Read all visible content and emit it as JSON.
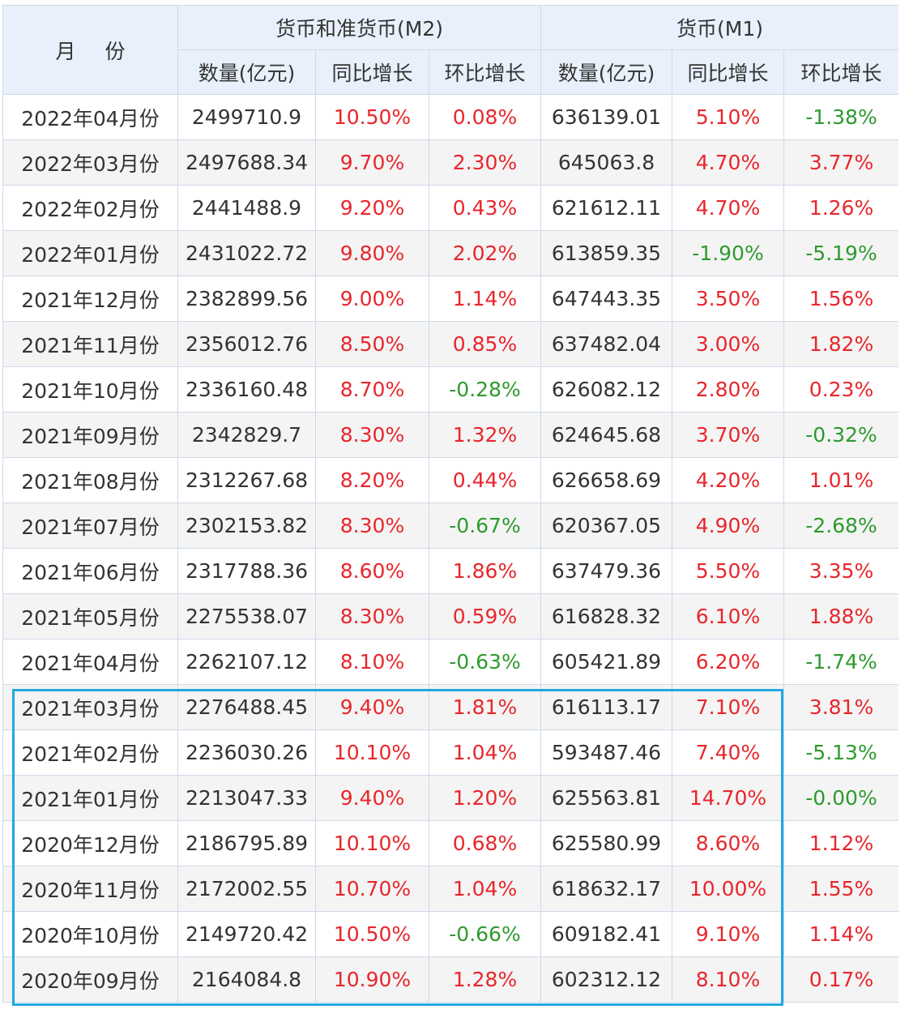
{
  "header": {
    "month_label": "月 份",
    "m2_group": "货币和准货币(M2)",
    "m1_group": "货币(M1)",
    "sub": [
      "数量(亿元)",
      "同比增长",
      "环比增长",
      "数量(亿元)",
      "同比增长",
      "环比增长"
    ]
  },
  "colors": {
    "positive": "#e8262c",
    "negative": "#2e9a2e",
    "header_bg": "#e8f1fb",
    "highlight_border": "#22a8e0"
  },
  "rows": [
    {
      "month": "2022年04月份",
      "m2_amount": "2499710.9",
      "m2_yoy": "10.50%",
      "m2_mom": "0.08%",
      "m1_amount": "636139.01",
      "m1_yoy": "5.10%",
      "m1_mom": "-1.38%"
    },
    {
      "month": "2022年03月份",
      "m2_amount": "2497688.34",
      "m2_yoy": "9.70%",
      "m2_mom": "2.30%",
      "m1_amount": "645063.8",
      "m1_yoy": "4.70%",
      "m1_mom": "3.77%"
    },
    {
      "month": "2022年02月份",
      "m2_amount": "2441488.9",
      "m2_yoy": "9.20%",
      "m2_mom": "0.43%",
      "m1_amount": "621612.11",
      "m1_yoy": "4.70%",
      "m1_mom": "1.26%"
    },
    {
      "month": "2022年01月份",
      "m2_amount": "2431022.72",
      "m2_yoy": "9.80%",
      "m2_mom": "2.02%",
      "m1_amount": "613859.35",
      "m1_yoy": "-1.90%",
      "m1_mom": "-5.19%"
    },
    {
      "month": "2021年12月份",
      "m2_amount": "2382899.56",
      "m2_yoy": "9.00%",
      "m2_mom": "1.14%",
      "m1_amount": "647443.35",
      "m1_yoy": "3.50%",
      "m1_mom": "1.56%"
    },
    {
      "month": "2021年11月份",
      "m2_amount": "2356012.76",
      "m2_yoy": "8.50%",
      "m2_mom": "0.85%",
      "m1_amount": "637482.04",
      "m1_yoy": "3.00%",
      "m1_mom": "1.82%"
    },
    {
      "month": "2021年10月份",
      "m2_amount": "2336160.48",
      "m2_yoy": "8.70%",
      "m2_mom": "-0.28%",
      "m1_amount": "626082.12",
      "m1_yoy": "2.80%",
      "m1_mom": "0.23%"
    },
    {
      "month": "2021年09月份",
      "m2_amount": "2342829.7",
      "m2_yoy": "8.30%",
      "m2_mom": "1.32%",
      "m1_amount": "624645.68",
      "m1_yoy": "3.70%",
      "m1_mom": "-0.32%"
    },
    {
      "month": "2021年08月份",
      "m2_amount": "2312267.68",
      "m2_yoy": "8.20%",
      "m2_mom": "0.44%",
      "m1_amount": "626658.69",
      "m1_yoy": "4.20%",
      "m1_mom": "1.01%"
    },
    {
      "month": "2021年07月份",
      "m2_amount": "2302153.82",
      "m2_yoy": "8.30%",
      "m2_mom": "-0.67%",
      "m1_amount": "620367.05",
      "m1_yoy": "4.90%",
      "m1_mom": "-2.68%"
    },
    {
      "month": "2021年06月份",
      "m2_amount": "2317788.36",
      "m2_yoy": "8.60%",
      "m2_mom": "1.86%",
      "m1_amount": "637479.36",
      "m1_yoy": "5.50%",
      "m1_mom": "3.35%"
    },
    {
      "month": "2021年05月份",
      "m2_amount": "2275538.07",
      "m2_yoy": "8.30%",
      "m2_mom": "0.59%",
      "m1_amount": "616828.32",
      "m1_yoy": "6.10%",
      "m1_mom": "1.88%"
    },
    {
      "month": "2021年04月份",
      "m2_amount": "2262107.12",
      "m2_yoy": "8.10%",
      "m2_mom": "-0.63%",
      "m1_amount": "605421.89",
      "m1_yoy": "6.20%",
      "m1_mom": "-1.74%"
    },
    {
      "month": "2021年03月份",
      "m2_amount": "2276488.45",
      "m2_yoy": "9.40%",
      "m2_mom": "1.81%",
      "m1_amount": "616113.17",
      "m1_yoy": "7.10%",
      "m1_mom": "3.81%"
    },
    {
      "month": "2021年02月份",
      "m2_amount": "2236030.26",
      "m2_yoy": "10.10%",
      "m2_mom": "1.04%",
      "m1_amount": "593487.46",
      "m1_yoy": "7.40%",
      "m1_mom": "-5.13%"
    },
    {
      "month": "2021年01月份",
      "m2_amount": "2213047.33",
      "m2_yoy": "9.40%",
      "m2_mom": "1.20%",
      "m1_amount": "625563.81",
      "m1_yoy": "14.70%",
      "m1_mom": "-0.00%"
    },
    {
      "month": "2020年12月份",
      "m2_amount": "2186795.89",
      "m2_yoy": "10.10%",
      "m2_mom": "0.68%",
      "m1_amount": "625580.99",
      "m1_yoy": "8.60%",
      "m1_mom": "1.12%"
    },
    {
      "month": "2020年11月份",
      "m2_amount": "2172002.55",
      "m2_yoy": "10.70%",
      "m2_mom": "1.04%",
      "m1_amount": "618632.17",
      "m1_yoy": "10.00%",
      "m1_mom": "1.55%"
    },
    {
      "month": "2020年10月份",
      "m2_amount": "2149720.42",
      "m2_yoy": "10.50%",
      "m2_mom": "-0.66%",
      "m1_amount": "609182.41",
      "m1_yoy": "9.10%",
      "m1_mom": "1.14%"
    },
    {
      "month": "2020年09月份",
      "m2_amount": "2164084.8",
      "m2_yoy": "10.90%",
      "m2_mom": "1.28%",
      "m1_amount": "602312.12",
      "m1_yoy": "8.10%",
      "m1_mom": "0.17%"
    }
  ]
}
